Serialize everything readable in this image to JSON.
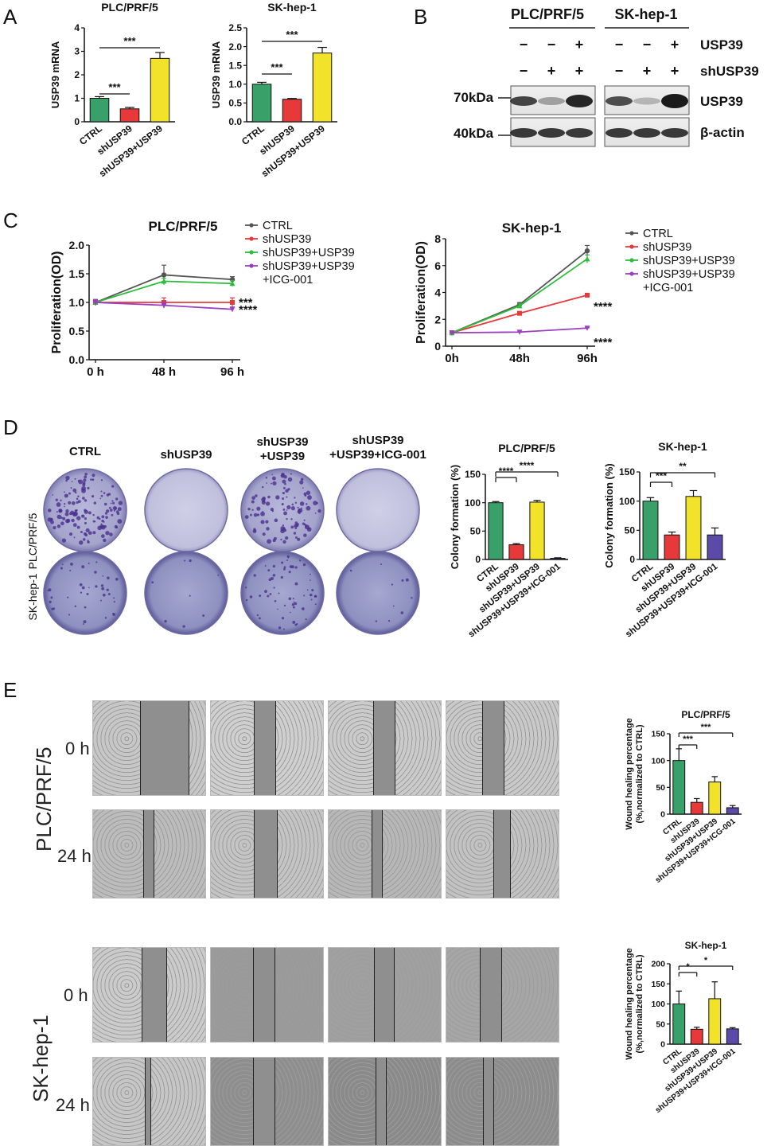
{
  "panels": {
    "a": "A",
    "b": "B",
    "c": "C",
    "d": "D",
    "e": "E"
  },
  "colors": {
    "ctrl": "#3aa06a",
    "sh": "#e8393a",
    "shusp": "#f2e22a",
    "icg": "#5b4aa8",
    "ctrl_line": "#555555",
    "green_line": "#2ebd3a",
    "purple_line": "#9a3fbf"
  },
  "chart_data": [
    {
      "id": "a1",
      "type": "bar",
      "title": "PLC/PRF/5",
      "ylabel": "USP39 mRNA",
      "ylim": [
        0,
        4
      ],
      "yticks": [
        "0",
        "1",
        "2",
        "3",
        "4"
      ],
      "categories": [
        "CTRL",
        "shUSP39",
        "shUSP39+USP39"
      ],
      "values": [
        1.0,
        0.55,
        2.7
      ],
      "errors": [
        0.07,
        0.06,
        0.25
      ],
      "sig": [
        {
          "label": "***",
          "from": 0,
          "to": 1
        },
        {
          "label": "***",
          "from": 0,
          "to": 2
        }
      ]
    },
    {
      "id": "a2",
      "type": "bar",
      "title": "SK-hep-1",
      "ylabel": "USP39 mRNA",
      "ylim": [
        0,
        2.5
      ],
      "yticks": [
        "0.0",
        "0.5",
        "1.0",
        "1.5",
        "2.0",
        "2.5"
      ],
      "categories": [
        "CTRL",
        "shUSP39",
        "shUSP39+USP39"
      ],
      "values": [
        1.0,
        0.6,
        1.83
      ],
      "errors": [
        0.05,
        0.02,
        0.15
      ],
      "sig": [
        {
          "label": "***",
          "from": 0,
          "to": 1
        },
        {
          "label": "***",
          "from": 0,
          "to": 2
        }
      ]
    },
    {
      "id": "c1",
      "type": "line",
      "title": "PLC/PRF/5",
      "ylabel": "Proliferation(OD)",
      "ylim": [
        0,
        2.0
      ],
      "yticks": [
        "0.0",
        "0.5",
        "1.0",
        "1.5",
        "2.0"
      ],
      "x": [
        "0 h",
        "48 h",
        "96 h"
      ],
      "series": [
        {
          "name": "CTRL",
          "values": [
            1.0,
            1.48,
            1.4
          ],
          "errors": [
            0.05,
            0.17,
            0.05
          ]
        },
        {
          "name": "shUSP39",
          "values": [
            1.0,
            1.0,
            1.0
          ],
          "errors": [
            0.05,
            0.08,
            0.08
          ]
        },
        {
          "name": "shUSP39+USP39",
          "values": [
            1.0,
            1.37,
            1.33
          ],
          "errors": [
            0.05,
            0.05,
            0.05
          ]
        },
        {
          "name": "shUSP39+USP39\n+ICG-001",
          "values": [
            1.0,
            0.95,
            0.88
          ],
          "errors": [
            0.05,
            0.05,
            0.04
          ]
        }
      ],
      "legend": [
        "CTRL",
        "shUSP39",
        "shUSP39+USP39",
        "shUSP39+USP39",
        "+ICG-001"
      ],
      "sig": [
        "***",
        "****"
      ]
    },
    {
      "id": "c2",
      "type": "line",
      "title": "SK-hep-1",
      "ylabel": "Proliferation(OD)",
      "ylim": [
        0,
        8
      ],
      "yticks": [
        "0",
        "2",
        "4",
        "6",
        "8"
      ],
      "x": [
        "0h",
        "48h",
        "96h"
      ],
      "series": [
        {
          "name": "CTRL",
          "values": [
            1.0,
            3.1,
            7.1
          ],
          "errors": [
            0.05,
            0.15,
            0.4
          ]
        },
        {
          "name": "shUSP39",
          "values": [
            1.0,
            2.45,
            3.8
          ],
          "errors": [
            0.05,
            0.1,
            0.1
          ]
        },
        {
          "name": "shUSP39+USP39",
          "values": [
            1.0,
            3.0,
            6.5
          ],
          "errors": [
            0.05,
            0.15,
            0.3
          ]
        },
        {
          "name": "shUSP39+USP39\n+ICG-001",
          "values": [
            1.0,
            1.05,
            1.35
          ],
          "errors": [
            0.03,
            0.03,
            0.03
          ]
        }
      ],
      "legend": [
        "CTRL",
        "shUSP39",
        "shUSP39+USP39",
        "shUSP39+USP39",
        "+ICG-001"
      ],
      "sig": [
        "****",
        "****"
      ]
    },
    {
      "id": "d1",
      "type": "bar",
      "title": "PLC/PRF/5",
      "ylabel": "Colony formation (%)",
      "ylim": [
        0,
        150
      ],
      "yticks": [
        "0",
        "50",
        "100",
        "150"
      ],
      "categories": [
        "CTRL",
        "shUSP39",
        "shUSP39+USP39",
        "shUSP39+USP39+ICG-001"
      ],
      "values": [
        100,
        26,
        101,
        2
      ],
      "errors": [
        2,
        2,
        3,
        1
      ],
      "sig": [
        {
          "label": "****",
          "from": 0,
          "to": 1
        },
        {
          "label": "****",
          "from": 0,
          "to": 3
        }
      ]
    },
    {
      "id": "d2",
      "type": "bar",
      "title": "SK-hep-1",
      "ylabel": "Colony formation (%)",
      "ylim": [
        0,
        150
      ],
      "yticks": [
        "0",
        "50",
        "100",
        "150"
      ],
      "categories": [
        "CTRL",
        "shUSP39",
        "shUSP39+USP39",
        "shUSP39+USP39+ICG-001"
      ],
      "values": [
        100,
        42,
        108,
        42
      ],
      "errors": [
        6,
        5,
        10,
        12
      ],
      "sig": [
        {
          "label": "***",
          "from": 0,
          "to": 1
        },
        {
          "label": "**",
          "from": 0,
          "to": 3
        }
      ]
    },
    {
      "id": "e1",
      "type": "bar",
      "title": "PLC/PRF/5",
      "ylabel": "Wound healing percentage\n(%,normalized to CTRL)",
      "ylim": [
        0,
        150
      ],
      "yticks": [
        "0",
        "50",
        "100",
        "150"
      ],
      "categories": [
        "CTRL",
        "shUSP39",
        "shUSP39+USP39",
        "shUSP39+USP39+ICG-001"
      ],
      "values": [
        100,
        22,
        60,
        12
      ],
      "errors": [
        22,
        7,
        10,
        4
      ],
      "sig": [
        {
          "label": "***",
          "from": 0,
          "to": 1
        },
        {
          "label": "***",
          "from": 0,
          "to": 3
        }
      ]
    },
    {
      "id": "e2",
      "type": "bar",
      "title": "SK-hep-1",
      "ylabel": "Wound healing percentage\n(%,normalized to CTRL)",
      "ylim": [
        0,
        200
      ],
      "yticks": [
        "0",
        "50",
        "100",
        "150",
        "200"
      ],
      "categories": [
        "CTRL",
        "shUSP39",
        "shUSP39+USP39",
        "shUSP39+USP39+ICG-001"
      ],
      "values": [
        100,
        37,
        113,
        38
      ],
      "errors": [
        32,
        5,
        42,
        3
      ],
      "sig": [
        {
          "label": "*",
          "from": 0,
          "to": 1
        },
        {
          "label": "*",
          "from": 0,
          "to": 3
        }
      ]
    }
  ],
  "blot": {
    "cell_lines": [
      "PLC/PRF/5",
      "SK-hep-1"
    ],
    "row_usp39": [
      "−",
      "−",
      "+",
      "−",
      "−",
      "+"
    ],
    "row_sh": [
      "−",
      "+",
      "+",
      "−",
      "+",
      "+"
    ],
    "right_labels": [
      "USP39",
      "shUSP39",
      "USP39",
      "β-actin"
    ],
    "markers": [
      "70kDa",
      "40kDa"
    ]
  },
  "colony": {
    "headers": [
      "CTRL",
      "shUSP39",
      "shUSP39",
      "+USP39",
      "shUSP39",
      "+USP39+ICG-001"
    ],
    "rows": [
      "PLC/PRF/5",
      "SK-hep-1"
    ]
  },
  "wound": {
    "rows": [
      "PLC/PRF/5",
      "SK-hep-1"
    ],
    "times": [
      "0 h",
      "24 h",
      "0 h",
      "24 h"
    ]
  }
}
